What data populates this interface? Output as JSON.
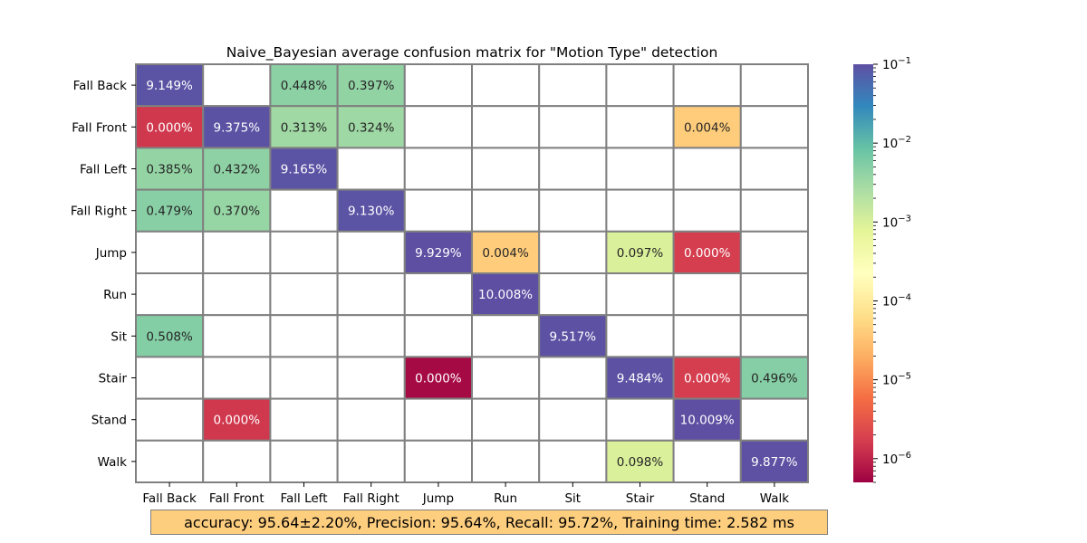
{
  "chart_data": {
    "type": "heatmap",
    "title": "Naive_Bayesian average confusion matrix for \"Motion Type\" detection",
    "rows": [
      "Fall Back",
      "Fall Front",
      "Fall Left",
      "Fall Right",
      "Jump",
      "Run",
      "Sit",
      "Stair",
      "Stand",
      "Walk"
    ],
    "columns": [
      "Fall Back",
      "Fall Front",
      "Fall Left",
      "Fall Right",
      "Jump",
      "Run",
      "Sit",
      "Stair",
      "Stand",
      "Walk"
    ],
    "cells": [
      {
        "row": 0,
        "col": 0,
        "label": "9.149%",
        "value": 0.09149
      },
      {
        "row": 0,
        "col": 2,
        "label": "0.448%",
        "value": 0.00448
      },
      {
        "row": 0,
        "col": 3,
        "label": "0.397%",
        "value": 0.00397
      },
      {
        "row": 1,
        "col": 0,
        "label": "0.000%",
        "value": 1.5e-06
      },
      {
        "row": 1,
        "col": 1,
        "label": "9.375%",
        "value": 0.09375
      },
      {
        "row": 1,
        "col": 2,
        "label": "0.313%",
        "value": 0.00313
      },
      {
        "row": 1,
        "col": 3,
        "label": "0.324%",
        "value": 0.00324
      },
      {
        "row": 1,
        "col": 8,
        "label": "0.004%",
        "value": 4e-05
      },
      {
        "row": 2,
        "col": 0,
        "label": "0.385%",
        "value": 0.00385
      },
      {
        "row": 2,
        "col": 1,
        "label": "0.432%",
        "value": 0.00432
      },
      {
        "row": 2,
        "col": 2,
        "label": "9.165%",
        "value": 0.09165
      },
      {
        "row": 3,
        "col": 0,
        "label": "0.479%",
        "value": 0.00479
      },
      {
        "row": 3,
        "col": 1,
        "label": "0.370%",
        "value": 0.0037
      },
      {
        "row": 3,
        "col": 3,
        "label": "9.130%",
        "value": 0.0913
      },
      {
        "row": 4,
        "col": 4,
        "label": "9.929%",
        "value": 0.09929
      },
      {
        "row": 4,
        "col": 5,
        "label": "0.004%",
        "value": 4e-05
      },
      {
        "row": 4,
        "col": 7,
        "label": "0.097%",
        "value": 0.00097
      },
      {
        "row": 4,
        "col": 8,
        "label": "0.000%",
        "value": 1.7e-06
      },
      {
        "row": 5,
        "col": 5,
        "label": "10.008%",
        "value": 0.10008
      },
      {
        "row": 6,
        "col": 0,
        "label": "0.508%",
        "value": 0.00508
      },
      {
        "row": 6,
        "col": 6,
        "label": "9.517%",
        "value": 0.09517
      },
      {
        "row": 7,
        "col": 4,
        "label": "0.000%",
        "value": 6e-07
      },
      {
        "row": 7,
        "col": 7,
        "label": "9.484%",
        "value": 0.09484
      },
      {
        "row": 7,
        "col": 8,
        "label": "0.000%",
        "value": 1.7e-06
      },
      {
        "row": 7,
        "col": 9,
        "label": "0.496%",
        "value": 0.00496
      },
      {
        "row": 8,
        "col": 1,
        "label": "0.000%",
        "value": 1.5e-06
      },
      {
        "row": 8,
        "col": 8,
        "label": "10.009%",
        "value": 0.10009
      },
      {
        "row": 9,
        "col": 7,
        "label": "0.098%",
        "value": 0.00098
      },
      {
        "row": 9,
        "col": 9,
        "label": "9.877%",
        "value": 0.09877
      }
    ],
    "colorbar": {
      "scale": "log",
      "colormap": "Spectral",
      "range": [
        5e-07,
        0.1
      ],
      "ticks": [
        {
          "value": 0.1,
          "base": "10",
          "exp": "−1"
        },
        {
          "value": 0.01,
          "base": "10",
          "exp": "−2"
        },
        {
          "value": 0.001,
          "base": "10",
          "exp": "−3"
        },
        {
          "value": 0.0001,
          "base": "10",
          "exp": "−4"
        },
        {
          "value": 1e-05,
          "base": "10",
          "exp": "−5"
        },
        {
          "value": 1e-06,
          "base": "10",
          "exp": "−6"
        }
      ]
    },
    "empty_cell_color": "#ffffff",
    "grid_line_color": "#808080"
  },
  "summary": {
    "text": "accuracy:  95.64±2.20%, Precision:  95.64%, Recall:  95.72%, Training time:  2.582 ms",
    "background": "#fece7f"
  }
}
